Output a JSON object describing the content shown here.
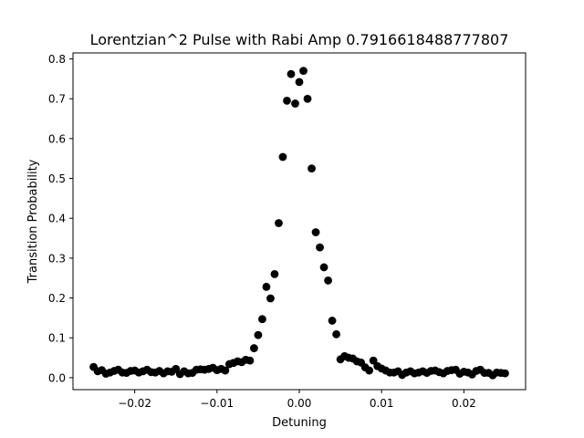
{
  "chart_data": {
    "type": "scatter",
    "title": "Lorentzian^2 Pulse with Rabi Amp 0.7916618488777807",
    "xlabel": "Detuning",
    "ylabel": "Transition Probability",
    "xlim": [
      -0.0275,
      0.0275
    ],
    "ylim": [
      -0.03,
      0.815
    ],
    "xticks": [
      {
        "value": -0.02,
        "label": "−0.02"
      },
      {
        "value": -0.01,
        "label": "−0.01"
      },
      {
        "value": 0.0,
        "label": "0.00"
      },
      {
        "value": 0.01,
        "label": "0.01"
      },
      {
        "value": 0.02,
        "label": "0.02"
      }
    ],
    "yticks": [
      {
        "value": 0.0,
        "label": "0.0"
      },
      {
        "value": 0.1,
        "label": "0.1"
      },
      {
        "value": 0.2,
        "label": "0.2"
      },
      {
        "value": 0.3,
        "label": "0.3"
      },
      {
        "value": 0.4,
        "label": "0.4"
      },
      {
        "value": 0.5,
        "label": "0.5"
      },
      {
        "value": 0.6,
        "label": "0.6"
      },
      {
        "value": 0.7,
        "label": "0.7"
      },
      {
        "value": 0.8,
        "label": "0.8"
      }
    ],
    "marker_color": "#000000",
    "grid": false,
    "points": [
      [
        -0.025,
        0.027
      ],
      [
        -0.0245,
        0.016
      ],
      [
        -0.024,
        0.019
      ],
      [
        -0.0235,
        0.01
      ],
      [
        -0.023,
        0.013
      ],
      [
        -0.0225,
        0.017
      ],
      [
        -0.022,
        0.02
      ],
      [
        -0.0215,
        0.013
      ],
      [
        -0.021,
        0.012
      ],
      [
        -0.0205,
        0.017
      ],
      [
        -0.02,
        0.018
      ],
      [
        -0.0195,
        0.013
      ],
      [
        -0.019,
        0.016
      ],
      [
        -0.0185,
        0.02
      ],
      [
        -0.018,
        0.014
      ],
      [
        -0.0175,
        0.013
      ],
      [
        -0.017,
        0.017
      ],
      [
        -0.0165,
        0.011
      ],
      [
        -0.016,
        0.016
      ],
      [
        -0.0155,
        0.015
      ],
      [
        -0.015,
        0.022
      ],
      [
        -0.0145,
        0.009
      ],
      [
        -0.014,
        0.016
      ],
      [
        -0.0135,
        0.011
      ],
      [
        -0.013,
        0.012
      ],
      [
        -0.0125,
        0.02
      ],
      [
        -0.012,
        0.021
      ],
      [
        -0.0115,
        0.02
      ],
      [
        -0.011,
        0.022
      ],
      [
        -0.0105,
        0.025
      ],
      [
        -0.01,
        0.019
      ],
      [
        -0.0095,
        0.022
      ],
      [
        -0.009,
        0.018
      ],
      [
        -0.0085,
        0.034
      ],
      [
        -0.008,
        0.037
      ],
      [
        -0.0075,
        0.041
      ],
      [
        -0.007,
        0.039
      ],
      [
        -0.0065,
        0.045
      ],
      [
        -0.006,
        0.043
      ],
      [
        -0.0055,
        0.074
      ],
      [
        -0.005,
        0.107
      ],
      [
        -0.0045,
        0.147
      ],
      [
        -0.004,
        0.228
      ],
      [
        -0.0035,
        0.199
      ],
      [
        -0.003,
        0.26
      ],
      [
        -0.0025,
        0.388
      ],
      [
        -0.002,
        0.554
      ],
      [
        -0.0015,
        0.695
      ],
      [
        -0.001,
        0.762
      ],
      [
        -0.0005,
        0.688
      ],
      [
        0.0,
        0.742
      ],
      [
        0.0005,
        0.77
      ],
      [
        0.001,
        0.7
      ],
      [
        0.0015,
        0.525
      ],
      [
        0.002,
        0.365
      ],
      [
        0.0025,
        0.327
      ],
      [
        0.003,
        0.277
      ],
      [
        0.0035,
        0.244
      ],
      [
        0.004,
        0.143
      ],
      [
        0.0045,
        0.109
      ],
      [
        0.005,
        0.046
      ],
      [
        0.0055,
        0.054
      ],
      [
        0.006,
        0.05
      ],
      [
        0.0065,
        0.048
      ],
      [
        0.007,
        0.041
      ],
      [
        0.0075,
        0.038
      ],
      [
        0.008,
        0.026
      ],
      [
        0.0085,
        0.018
      ],
      [
        0.009,
        0.043
      ],
      [
        0.0095,
        0.029
      ],
      [
        0.01,
        0.023
      ],
      [
        0.0105,
        0.018
      ],
      [
        0.011,
        0.013
      ],
      [
        0.0115,
        0.013
      ],
      [
        0.012,
        0.016
      ],
      [
        0.0125,
        0.007
      ],
      [
        0.013,
        0.013
      ],
      [
        0.0135,
        0.016
      ],
      [
        0.014,
        0.011
      ],
      [
        0.0145,
        0.013
      ],
      [
        0.015,
        0.016
      ],
      [
        0.0155,
        0.012
      ],
      [
        0.016,
        0.017
      ],
      [
        0.0165,
        0.018
      ],
      [
        0.017,
        0.014
      ],
      [
        0.0175,
        0.011
      ],
      [
        0.018,
        0.017
      ],
      [
        0.0185,
        0.019
      ],
      [
        0.019,
        0.02
      ],
      [
        0.0195,
        0.01
      ],
      [
        0.02,
        0.015
      ],
      [
        0.0205,
        0.013
      ],
      [
        0.021,
        0.008
      ],
      [
        0.0215,
        0.017
      ],
      [
        0.022,
        0.02
      ],
      [
        0.0225,
        0.012
      ],
      [
        0.023,
        0.012
      ],
      [
        0.0235,
        0.006
      ],
      [
        0.024,
        0.013
      ],
      [
        0.0245,
        0.012
      ],
      [
        0.025,
        0.011
      ]
    ]
  }
}
